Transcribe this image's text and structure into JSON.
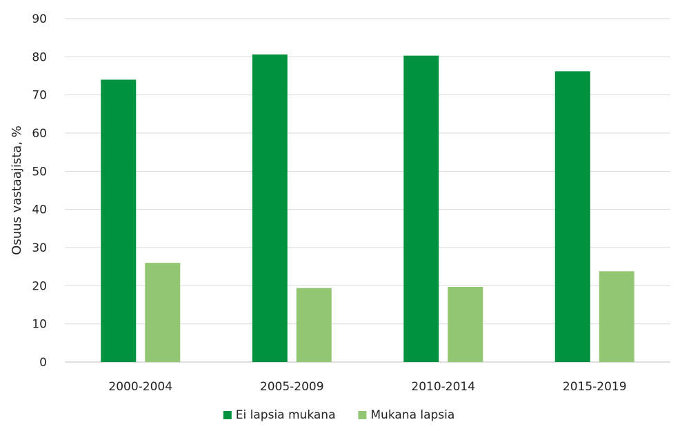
{
  "chart_data": {
    "type": "bar",
    "title": "",
    "xlabel": "",
    "ylabel": "Osuus vastaajista, %",
    "ylim": [
      0,
      90
    ],
    "yticks": [
      0,
      10,
      20,
      30,
      40,
      50,
      60,
      70,
      80,
      90
    ],
    "grid": true,
    "legend_position": "bottom",
    "categories": [
      "2000-2004",
      "2005-2009",
      "2010-2014",
      "2015-2019"
    ],
    "series": [
      {
        "name": "Ei lapsia mukana",
        "color": "#00923f",
        "values": [
          74,
          80.6,
          80.3,
          76.2
        ]
      },
      {
        "name": "Mukana lapsia",
        "color": "#93c673",
        "values": [
          26,
          19.4,
          19.7,
          23.8
        ]
      }
    ]
  }
}
